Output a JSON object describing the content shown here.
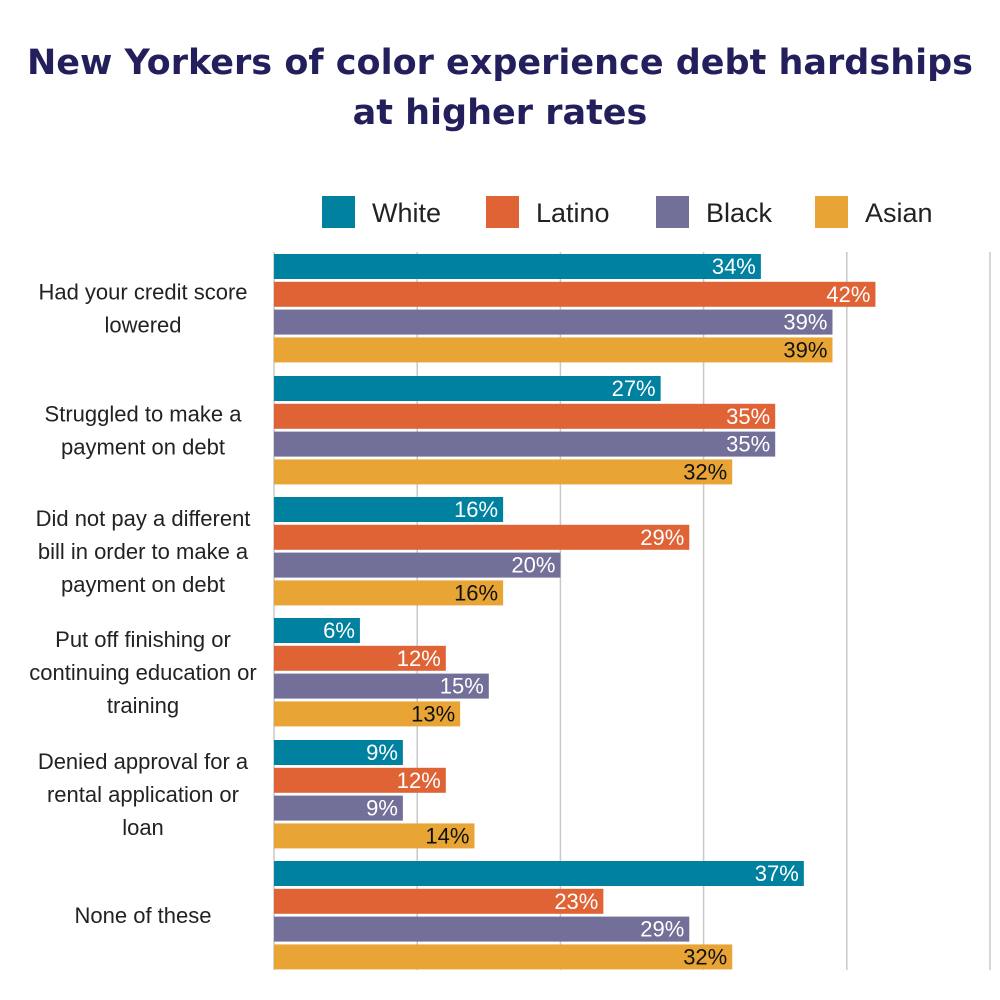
{
  "chart_data": {
    "type": "bar",
    "orientation": "horizontal",
    "title": [
      "New Yorkers of color experience debt hardships",
      "at higher rates"
    ],
    "categories": [
      [
        "Had your credit score",
        "lowered"
      ],
      [
        "Struggled to make a",
        "payment on debt"
      ],
      [
        "Did not pay a different",
        "bill in order to make a",
        "payment on debt"
      ],
      [
        "Put off finishing or",
        "continuing education or",
        "training"
      ],
      [
        "Denied approval for a",
        "rental application or",
        "loan"
      ],
      [
        "None of these"
      ]
    ],
    "series": [
      {
        "name": "White",
        "color": "#00819f",
        "label_color": "#ffffff",
        "values": [
          34,
          27,
          16,
          6,
          9,
          37
        ]
      },
      {
        "name": "Latino",
        "color": "#e06336",
        "label_color": "#ffffff",
        "values": [
          42,
          35,
          29,
          12,
          12,
          23
        ]
      },
      {
        "name": "Black",
        "color": "#726f99",
        "label_color": "#ffffff",
        "values": [
          39,
          35,
          20,
          15,
          9,
          29
        ]
      },
      {
        "name": "Asian",
        "color": "#e8a536",
        "label_color": "#111111",
        "values": [
          39,
          32,
          16,
          13,
          14,
          32
        ]
      }
    ],
    "value_suffix": "%",
    "xlim": [
      0,
      50
    ],
    "gridlines": [
      10,
      20,
      30,
      40,
      50
    ],
    "grid": true,
    "legend": "top-right",
    "xlabel": "",
    "ylabel": ""
  }
}
